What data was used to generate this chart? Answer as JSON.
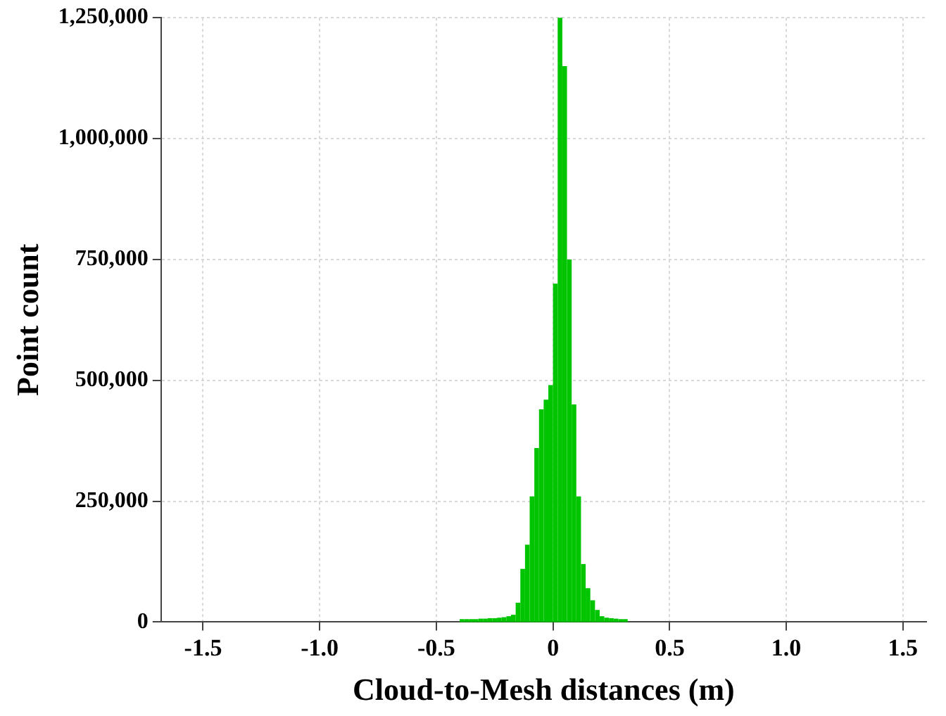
{
  "chart_data": {
    "type": "histogram",
    "xlabel": "Cloud-to-Mesh distances (m)",
    "ylabel": "Point count",
    "color": "#00c400",
    "bins": [
      -0.4,
      -0.38,
      -0.36,
      -0.34,
      -0.32,
      -0.3,
      -0.28,
      -0.26,
      -0.24,
      -0.22,
      -0.2,
      -0.18,
      -0.16,
      -0.14,
      -0.12,
      -0.1,
      -0.08,
      -0.06,
      -0.04,
      -0.02,
      0,
      0.02,
      0.04,
      0.06,
      0.08,
      0.1,
      0.12,
      0.14,
      0.16,
      0.18,
      0.2,
      0.22,
      0.24,
      0.26,
      0.28,
      0.3,
      0.32
    ],
    "values": [
      6000,
      6000,
      6000,
      6000,
      7000,
      7000,
      8000,
      8000,
      9000,
      10000,
      12000,
      15000,
      40000,
      110000,
      160000,
      260000,
      360000,
      440000,
      460000,
      490000,
      700000,
      1250000,
      1150000,
      750000,
      450000,
      260000,
      120000,
      70000,
      45000,
      25000,
      12000,
      9000,
      8000,
      7000,
      6000,
      6000
    ],
    "xlim": [
      -1.68,
      1.6
    ],
    "xticks": [
      -1.5,
      {
        "value": -1,
        "label": "-1.0"
      },
      -0.5,
      0,
      0.5,
      {
        "value": 1,
        "label": "1.0"
      },
      1.5
    ],
    "ylim": [
      0,
      1250000
    ],
    "yticks": [
      0,
      {
        "value": 250000,
        "label": "250,000"
      },
      {
        "value": 500000,
        "label": "500,000"
      },
      {
        "value": 750000,
        "label": "750,000"
      },
      {
        "value": 1000000,
        "label": "1,000,000"
      },
      {
        "value": 1250000,
        "label": "1,250,000"
      }
    ],
    "grid": true
  }
}
